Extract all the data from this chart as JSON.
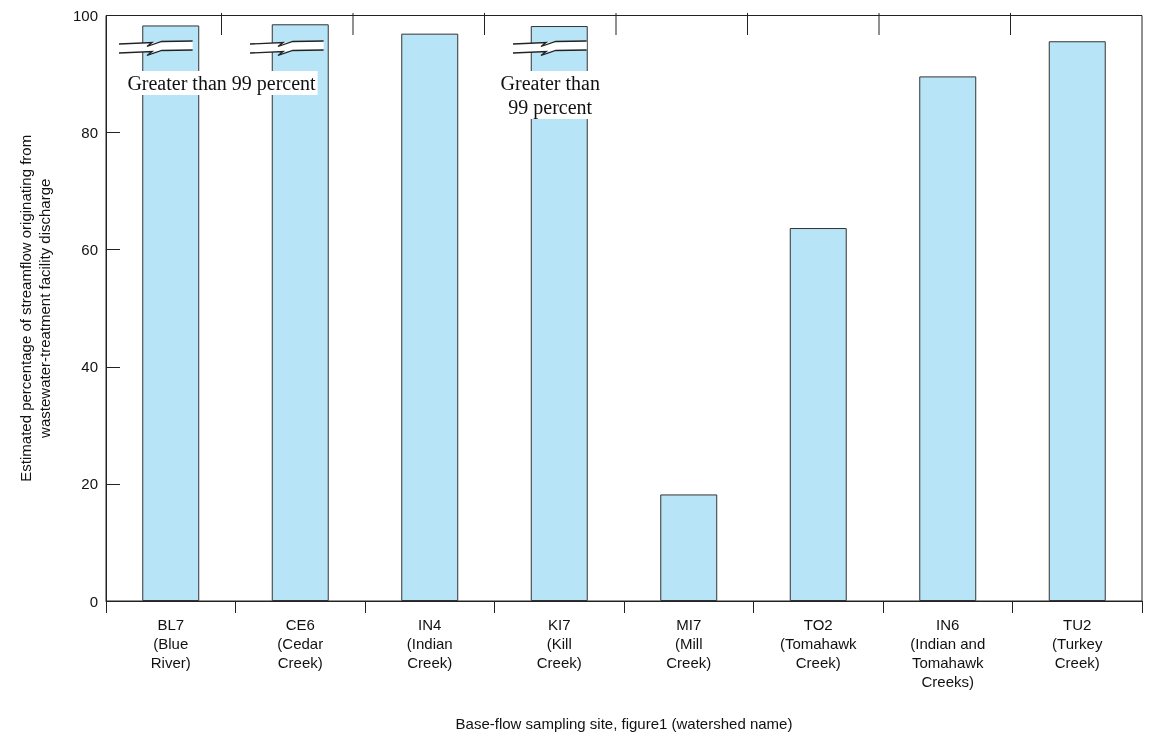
{
  "chart_data": {
    "type": "bar",
    "xlabel": "Base-flow sampling site, figure1 (watershed name)",
    "ylabel": "Estimated percentage of streamflow originating from\nwastewater-treatment facility discharge",
    "categories": [
      "BL7\n(Blue\nRiver)",
      "CE6\n(Cedar\nCreek)",
      "IN4\n(Indian\nCreek)",
      "KI7\n(Kill\nCreek)",
      "MI7\n(Mill\nCreek)",
      "TO2\n(Tomahawk\nCreek)",
      "IN6\n(Indian and\nTomahawk\nCreeks)",
      "TU2\n(Turkey\nCreek)"
    ],
    "values": [
      98.3,
      98.5,
      96.9,
      98.2,
      18.2,
      63.7,
      89.6,
      95.6
    ],
    "color": "#b8e4f8",
    "ylim": [
      0,
      100
    ],
    "yticks": [
      0,
      20,
      40,
      60,
      80,
      100
    ],
    "grid": false,
    "annotations": [
      "Greater than 99 percent",
      "Greater than\n99 percent"
    ]
  }
}
